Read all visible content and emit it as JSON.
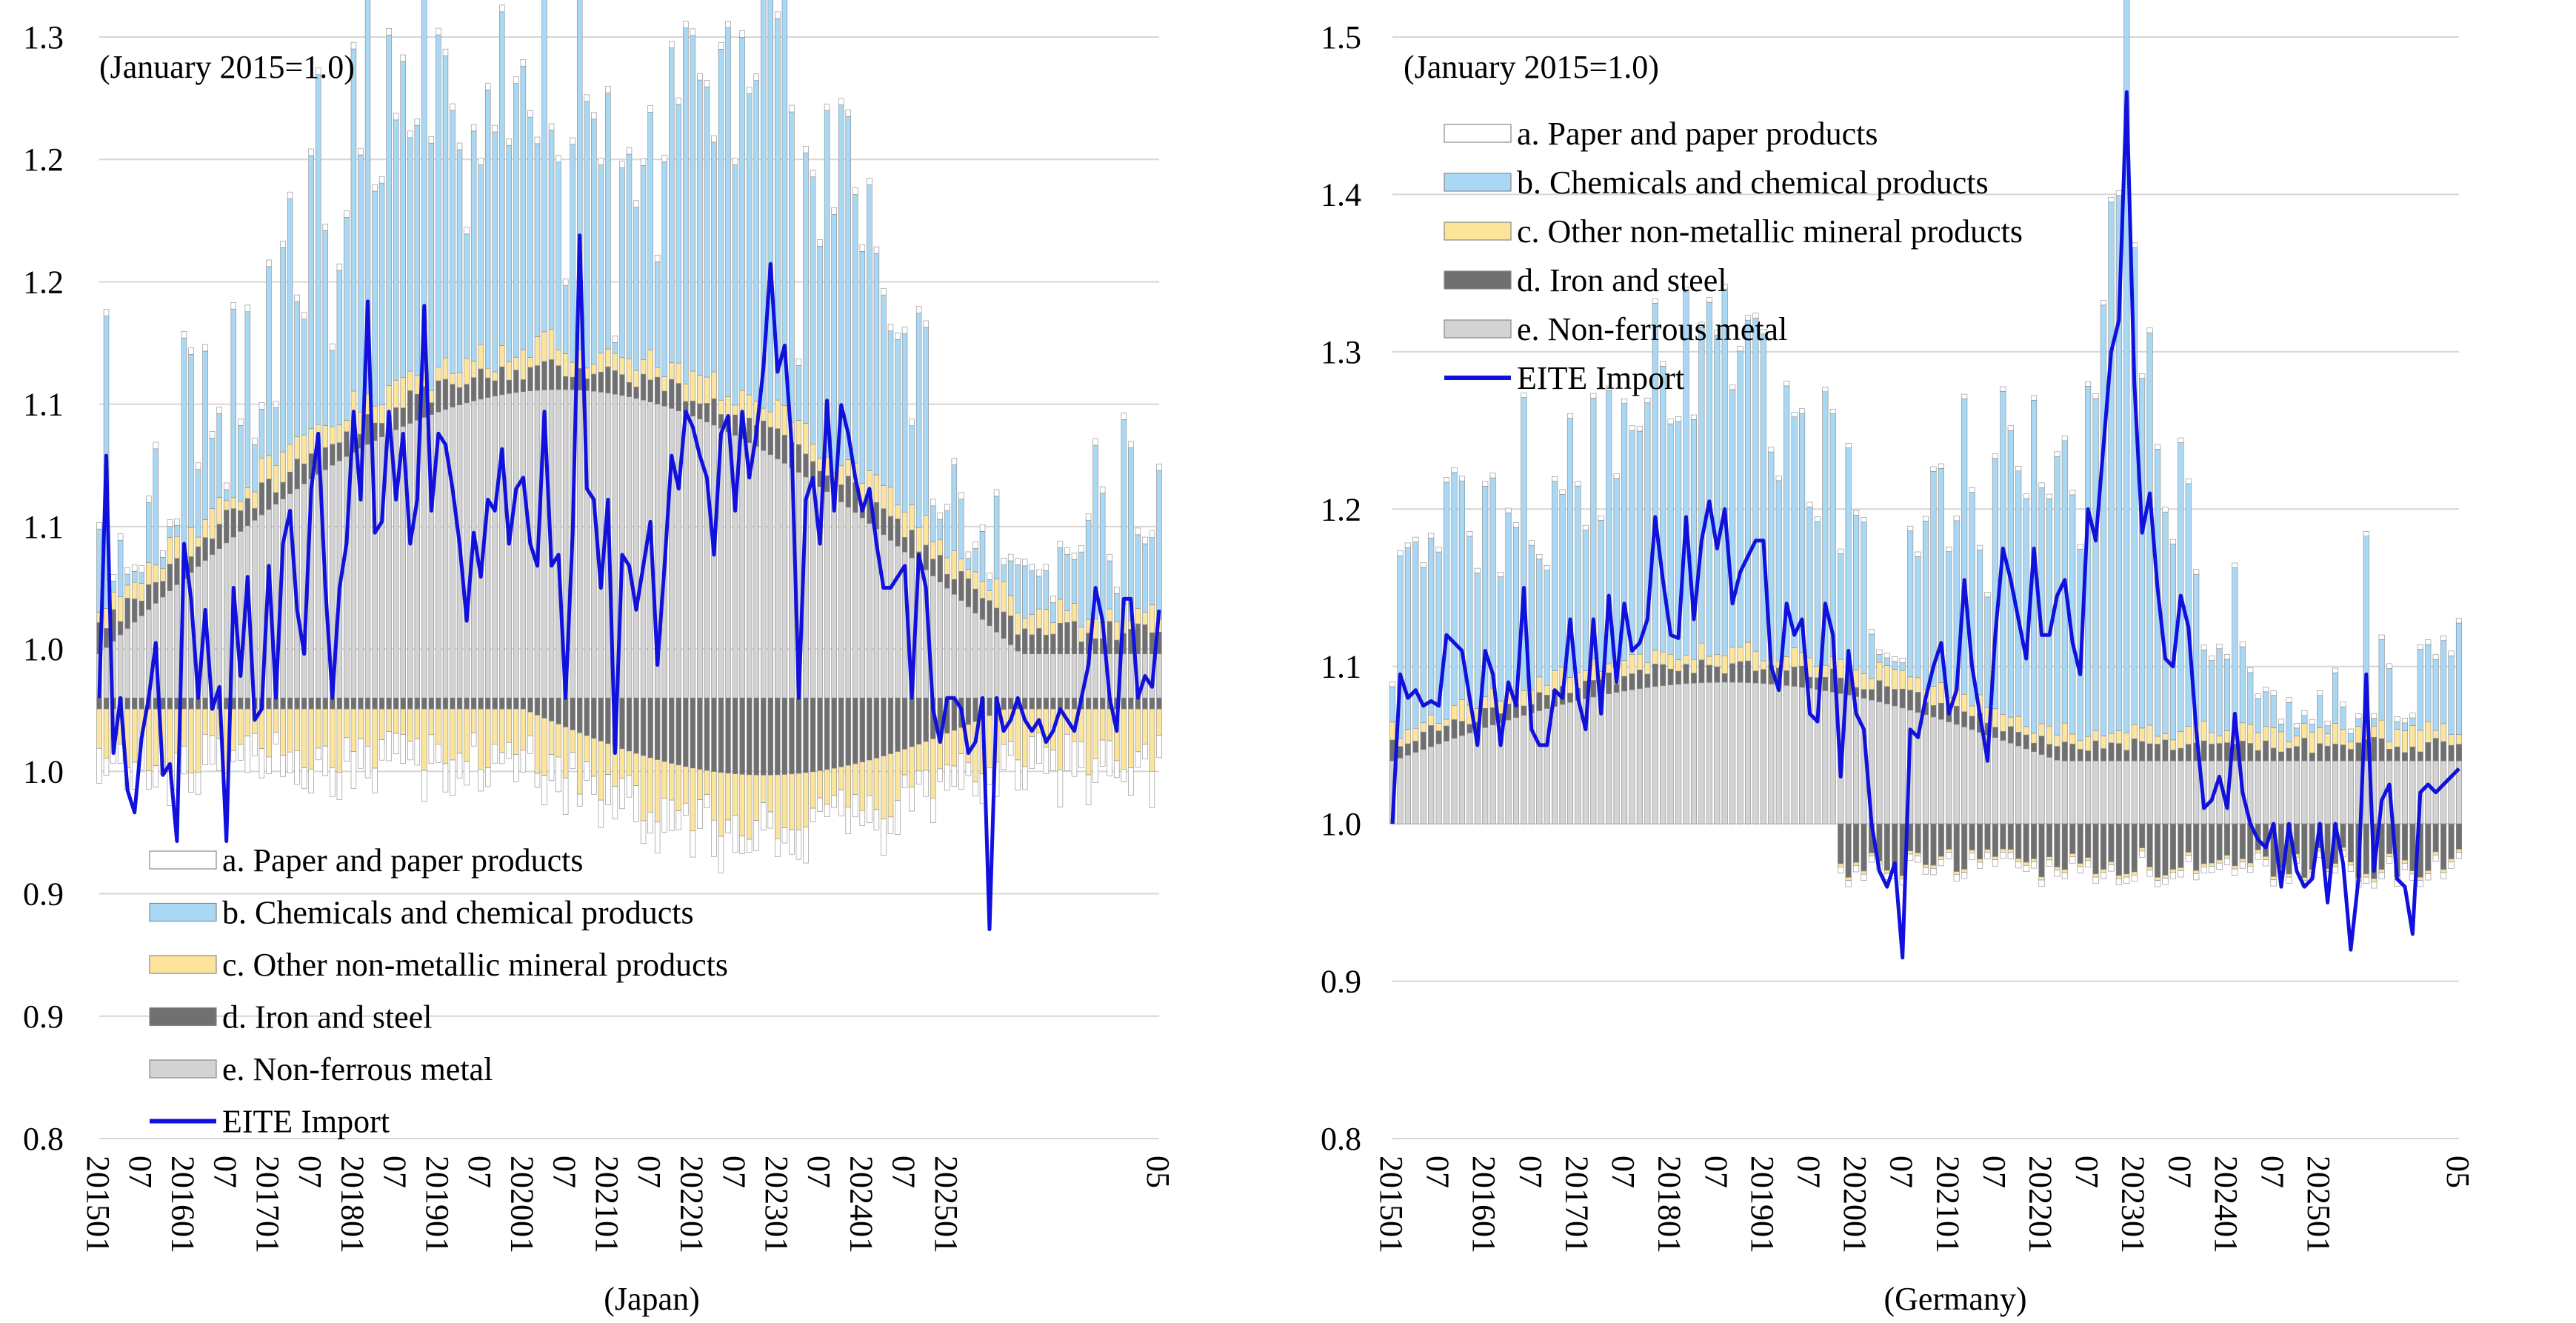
{
  "chart_data": [
    {
      "type": "bar",
      "title": "(Japan)",
      "note": "(January 2015=1.0)",
      "y_tick_labels": [
        "1.3",
        "1.2",
        "1.2",
        "1.1",
        "1.1",
        "1.0",
        "1.0",
        "0.9",
        "0.9",
        "0.8"
      ],
      "x_tick_labels": [
        "201501",
        "07",
        "201601",
        "07",
        "201701",
        "07",
        "201801",
        "07",
        "201901",
        "07",
        "202001",
        "07",
        "202101",
        "07",
        "202201",
        "07",
        "202301",
        "07",
        "202401",
        "07",
        "202501",
        "05"
      ],
      "ylim": [
        0.8,
        1.3
      ],
      "baseline": 1.0,
      "legend": [
        {
          "key": "paper",
          "label": "a. Paper and paper products",
          "color": "#ffffff"
        },
        {
          "key": "chem",
          "label": "b. Chemicals and chemical products",
          "color": "#a9d8f5"
        },
        {
          "key": "mineral",
          "label": "c. Other non-metallic mineral products",
          "color": "#fde49b"
        },
        {
          "key": "iron",
          "label": "d. Iron and steel",
          "color": "#707070"
        },
        {
          "key": "nonferrous",
          "label": "e. Non-ferrous metal",
          "color": "#d3d3d3"
        },
        {
          "key": "line",
          "label": "EITE Import",
          "color": "#1111dd"
        }
      ],
      "line_points": [
        [
          0,
          1.0
        ],
        [
          1,
          1.11
        ],
        [
          2,
          0.975
        ],
        [
          3,
          1.0
        ],
        [
          4,
          0.958
        ],
        [
          5,
          0.948
        ],
        [
          6,
          0.982
        ],
        [
          7,
          1.0
        ],
        [
          8,
          1.025
        ],
        [
          9,
          0.965
        ],
        [
          10,
          0.97
        ],
        [
          11,
          0.935
        ],
        [
          12,
          1.07
        ],
        [
          13,
          1.045
        ],
        [
          14,
          1.0
        ],
        [
          15,
          1.04
        ],
        [
          16,
          0.995
        ],
        [
          17,
          1.005
        ],
        [
          18,
          0.935
        ],
        [
          19,
          1.05
        ],
        [
          20,
          1.01
        ],
        [
          21,
          1.055
        ],
        [
          22,
          0.99
        ],
        [
          23,
          0.995
        ],
        [
          24,
          1.06
        ],
        [
          25,
          1.0
        ],
        [
          26,
          1.07
        ],
        [
          27,
          1.085
        ],
        [
          28,
          1.04
        ],
        [
          29,
          1.02
        ],
        [
          30,
          1.095
        ],
        [
          31,
          1.12
        ],
        [
          32,
          1.05
        ],
        [
          33,
          1.0
        ],
        [
          34,
          1.05
        ],
        [
          35,
          1.07
        ],
        [
          36,
          1.13
        ],
        [
          37,
          1.09
        ],
        [
          38,
          1.18
        ],
        [
          39,
          1.075
        ],
        [
          40,
          1.08
        ],
        [
          41,
          1.13
        ],
        [
          42,
          1.09
        ],
        [
          43,
          1.12
        ],
        [
          44,
          1.07
        ],
        [
          45,
          1.09
        ],
        [
          46,
          1.178
        ],
        [
          47,
          1.085
        ],
        [
          48,
          1.12
        ],
        [
          49,
          1.115
        ],
        [
          50,
          1.095
        ],
        [
          51,
          1.07
        ],
        [
          52,
          1.035
        ],
        [
          53,
          1.075
        ],
        [
          54,
          1.055
        ],
        [
          55,
          1.09
        ],
        [
          56,
          1.085
        ],
        [
          57,
          1.113
        ],
        [
          58,
          1.07
        ],
        [
          59,
          1.095
        ],
        [
          60,
          1.1
        ],
        [
          61,
          1.07
        ],
        [
          62,
          1.06
        ],
        [
          63,
          1.13
        ],
        [
          64,
          1.06
        ],
        [
          65,
          1.065
        ],
        [
          66,
          1.0
        ],
        [
          67,
          1.075
        ],
        [
          68,
          1.21
        ],
        [
          69,
          1.095
        ],
        [
          70,
          1.09
        ],
        [
          71,
          1.05
        ],
        [
          72,
          1.09
        ],
        [
          73,
          0.975
        ],
        [
          74,
          1.065
        ],
        [
          75,
          1.06
        ],
        [
          76,
          1.04
        ],
        [
          77,
          1.06
        ],
        [
          78,
          1.08
        ],
        [
          79,
          1.015
        ],
        [
          80,
          1.06
        ],
        [
          81,
          1.11
        ],
        [
          82,
          1.095
        ],
        [
          83,
          1.13
        ],
        [
          84,
          1.123
        ],
        [
          85,
          1.11
        ],
        [
          86,
          1.1
        ],
        [
          87,
          1.065
        ],
        [
          88,
          1.12
        ],
        [
          89,
          1.128
        ],
        [
          90,
          1.085
        ],
        [
          91,
          1.13
        ],
        [
          92,
          1.1
        ],
        [
          93,
          1.12
        ],
        [
          94,
          1.15
        ],
        [
          95,
          1.197
        ],
        [
          96,
          1.148
        ],
        [
          97,
          1.16
        ],
        [
          98,
          1.115
        ],
        [
          99,
          1.0
        ],
        [
          100,
          1.09
        ],
        [
          101,
          1.1
        ],
        [
          102,
          1.07
        ],
        [
          103,
          1.135
        ],
        [
          104,
          1.085
        ],
        [
          105,
          1.133
        ],
        [
          106,
          1.12
        ],
        [
          107,
          1.1
        ],
        [
          108,
          1.085
        ],
        [
          109,
          1.095
        ],
        [
          110,
          1.07
        ],
        [
          111,
          1.05
        ],
        [
          112,
          1.05
        ],
        [
          113,
          1.055
        ],
        [
          114,
          1.06
        ],
        [
          115,
          1.0
        ],
        [
          116,
          1.065
        ],
        [
          117,
          1.05
        ],
        [
          118,
          0.995
        ],
        [
          119,
          0.98
        ],
        [
          120,
          1.0
        ],
        [
          121,
          1.0
        ],
        [
          122,
          0.995
        ],
        [
          123,
          0.975
        ],
        [
          124,
          0.98
        ],
        [
          125,
          1.0
        ],
        [
          126,
          0.895
        ],
        [
          127,
          1.0
        ],
        [
          128,
          0.985
        ],
        [
          129,
          0.99
        ],
        [
          130,
          1.0
        ],
        [
          131,
          0.99
        ],
        [
          132,
          0.985
        ],
        [
          133,
          0.99
        ],
        [
          134,
          0.98
        ],
        [
          135,
          0.985
        ],
        [
          136,
          0.995
        ],
        [
          137,
          0.99
        ],
        [
          138,
          0.985
        ],
        [
          139,
          1.0
        ],
        [
          140,
          1.015
        ],
        [
          141,
          1.05
        ],
        [
          142,
          1.035
        ],
        [
          143,
          1.0
        ],
        [
          144,
          0.985
        ],
        [
          145,
          1.045
        ],
        [
          146,
          1.045
        ],
        [
          147,
          1.0
        ],
        [
          148,
          1.01
        ],
        [
          149,
          1.005
        ],
        [
          150,
          1.04
        ]
      ]
    },
    {
      "type": "bar",
      "title": "(Germany)",
      "note": "(January 2015=1.0)",
      "y_tick_labels": [
        "1.5",
        "1.4",
        "1.3",
        "1.2",
        "1.1",
        "1.0",
        "0.9",
        "0.8"
      ],
      "x_tick_labels": [
        "201501",
        "07",
        "201601",
        "07",
        "201701",
        "07",
        "201801",
        "07",
        "201901",
        "07",
        "202001",
        "07",
        "202101",
        "07",
        "202201",
        "07",
        "202301",
        "07",
        "202401",
        "07",
        "202501",
        "05"
      ],
      "ylim": [
        0.8,
        1.5
      ],
      "baseline": 1.0,
      "legend": [
        {
          "key": "paper",
          "label": "a. Paper and paper products",
          "color": "#ffffff"
        },
        {
          "key": "chem",
          "label": "b. Chemicals and chemical products",
          "color": "#a9d8f5"
        },
        {
          "key": "mineral",
          "label": "c. Other non-metallic mineral products",
          "color": "#fde49b"
        },
        {
          "key": "iron",
          "label": "d. Iron and steel",
          "color": "#707070"
        },
        {
          "key": "nonferrous",
          "label": "e. Non-ferrous metal",
          "color": "#d3d3d3"
        },
        {
          "key": "line",
          "label": "EITE Import",
          "color": "#1111dd"
        }
      ],
      "line_points": [
        [
          0,
          1.0
        ],
        [
          1,
          1.095
        ],
        [
          2,
          1.08
        ],
        [
          3,
          1.085
        ],
        [
          4,
          1.075
        ],
        [
          5,
          1.078
        ],
        [
          6,
          1.075
        ],
        [
          7,
          1.12
        ],
        [
          8,
          1.115
        ],
        [
          9,
          1.11
        ],
        [
          10,
          1.08
        ],
        [
          11,
          1.05
        ],
        [
          12,
          1.11
        ],
        [
          13,
          1.095
        ],
        [
          14,
          1.05
        ],
        [
          15,
          1.09
        ],
        [
          16,
          1.075
        ],
        [
          17,
          1.15
        ],
        [
          18,
          1.06
        ],
        [
          19,
          1.05
        ],
        [
          20,
          1.05
        ],
        [
          21,
          1.085
        ],
        [
          22,
          1.08
        ],
        [
          23,
          1.13
        ],
        [
          24,
          1.08
        ],
        [
          25,
          1.06
        ],
        [
          26,
          1.13
        ],
        [
          27,
          1.07
        ],
        [
          28,
          1.145
        ],
        [
          29,
          1.09
        ],
        [
          30,
          1.14
        ],
        [
          31,
          1.11
        ],
        [
          32,
          1.115
        ],
        [
          33,
          1.13
        ],
        [
          34,
          1.195
        ],
        [
          35,
          1.155
        ],
        [
          36,
          1.12
        ],
        [
          37,
          1.118
        ],
        [
          38,
          1.195
        ],
        [
          39,
          1.13
        ],
        [
          40,
          1.18
        ],
        [
          41,
          1.205
        ],
        [
          42,
          1.175
        ],
        [
          43,
          1.2
        ],
        [
          44,
          1.14
        ],
        [
          45,
          1.16
        ],
        [
          46,
          1.17
        ],
        [
          47,
          1.18
        ],
        [
          48,
          1.18
        ],
        [
          49,
          1.1
        ],
        [
          50,
          1.085
        ],
        [
          51,
          1.14
        ],
        [
          52,
          1.12
        ],
        [
          53,
          1.13
        ],
        [
          54,
          1.07
        ],
        [
          55,
          1.065
        ],
        [
          56,
          1.14
        ],
        [
          57,
          1.12
        ],
        [
          58,
          1.03
        ],
        [
          59,
          1.11
        ],
        [
          60,
          1.07
        ],
        [
          61,
          1.06
        ],
        [
          62,
          1.0
        ],
        [
          63,
          0.97
        ],
        [
          64,
          0.96
        ],
        [
          65,
          0.975
        ],
        [
          66,
          0.915
        ],
        [
          67,
          1.06
        ],
        [
          68,
          1.055
        ],
        [
          69,
          1.08
        ],
        [
          70,
          1.1
        ],
        [
          71,
          1.115
        ],
        [
          72,
          1.07
        ],
        [
          73,
          1.085
        ],
        [
          74,
          1.155
        ],
        [
          75,
          1.1
        ],
        [
          76,
          1.07
        ],
        [
          77,
          1.04
        ],
        [
          78,
          1.12
        ],
        [
          79,
          1.175
        ],
        [
          80,
          1.155
        ],
        [
          81,
          1.13
        ],
        [
          82,
          1.105
        ],
        [
          83,
          1.175
        ],
        [
          84,
          1.12
        ],
        [
          85,
          1.12
        ],
        [
          86,
          1.145
        ],
        [
          87,
          1.155
        ],
        [
          88,
          1.115
        ],
        [
          89,
          1.095
        ],
        [
          90,
          1.2
        ],
        [
          91,
          1.18
        ],
        [
          92,
          1.24
        ],
        [
          93,
          1.3
        ],
        [
          94,
          1.32
        ],
        [
          95,
          1.465
        ],
        [
          96,
          1.28
        ],
        [
          97,
          1.185
        ],
        [
          98,
          1.21
        ],
        [
          99,
          1.15
        ],
        [
          100,
          1.105
        ],
        [
          101,
          1.1
        ],
        [
          102,
          1.145
        ],
        [
          103,
          1.125
        ],
        [
          104,
          1.06
        ],
        [
          105,
          1.01
        ],
        [
          106,
          1.015
        ],
        [
          107,
          1.03
        ],
        [
          108,
          1.01
        ],
        [
          109,
          1.07
        ],
        [
          110,
          1.02
        ],
        [
          111,
          1.0
        ],
        [
          112,
          0.99
        ],
        [
          113,
          0.985
        ],
        [
          114,
          1.0
        ],
        [
          115,
          0.96
        ],
        [
          116,
          1.0
        ],
        [
          117,
          0.97
        ],
        [
          118,
          0.96
        ],
        [
          119,
          0.965
        ],
        [
          120,
          1.0
        ],
        [
          121,
          0.95
        ],
        [
          122,
          1.0
        ],
        [
          123,
          0.975
        ],
        [
          124,
          0.92
        ],
        [
          125,
          0.965
        ],
        [
          126,
          1.095
        ],
        [
          127,
          0.97
        ],
        [
          128,
          1.015
        ],
        [
          129,
          1.025
        ],
        [
          130,
          0.965
        ],
        [
          131,
          0.96
        ],
        [
          132,
          0.93
        ],
        [
          133,
          1.02
        ],
        [
          134,
          1.025
        ],
        [
          135,
          1.02
        ],
        [
          136,
          1.025
        ],
        [
          137,
          1.03
        ],
        [
          138,
          1.035
        ]
      ]
    }
  ]
}
